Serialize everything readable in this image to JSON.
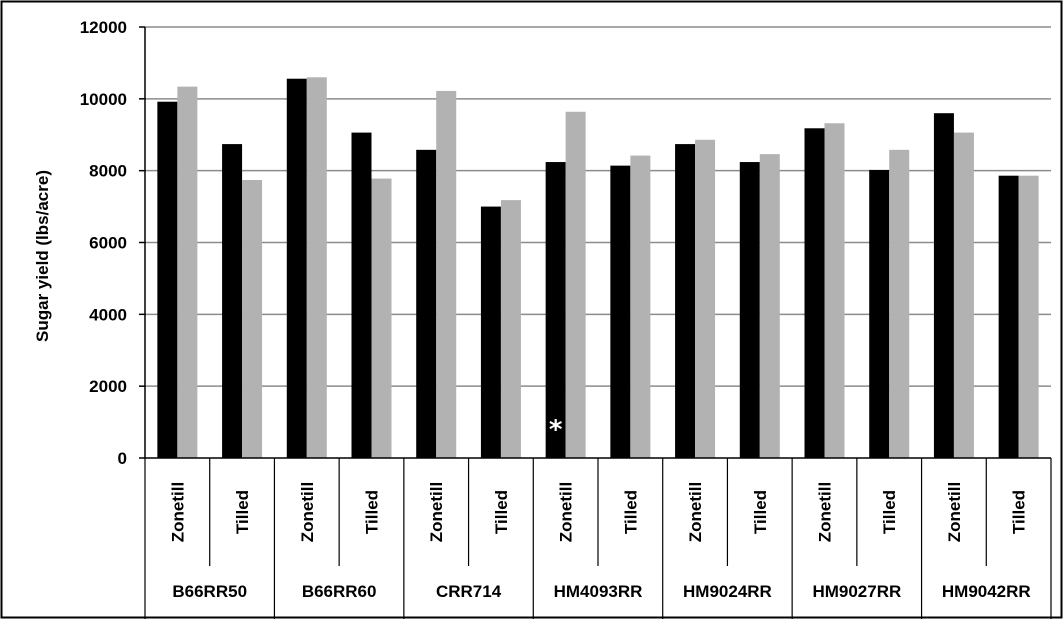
{
  "chart_data": {
    "type": "bar",
    "title": "",
    "xlabel": "",
    "ylabel": "Sugar yield (lbs/acre)",
    "ylim": [
      0,
      12000
    ],
    "yticks": [
      0,
      2000,
      4000,
      6000,
      8000,
      10000,
      12000
    ],
    "grid": true,
    "legend": "none",
    "group_labels": [
      "B66RR50",
      "B66RR60",
      "CRR714",
      "HM4093RR",
      "HM9024RR",
      "HM9027RR",
      "HM9042RR"
    ],
    "categories": [
      "Zonetill",
      "Tilled",
      "Zonetill",
      "Tilled",
      "Zonetill",
      "Tilled",
      "Zonetill",
      "Tilled",
      "Zonetill",
      "Tilled",
      "Zonetill",
      "Tilled",
      "Zonetill",
      "Tilled"
    ],
    "series": [
      {
        "color": "#000000",
        "values": [
          9920,
          8740,
          10560,
          9060,
          8580,
          7000,
          8240,
          8140,
          8740,
          8240,
          9180,
          8020,
          9600,
          7860
        ]
      },
      {
        "color": "#b2b2b2",
        "values": [
          10340,
          7740,
          10600,
          7780,
          10220,
          7180,
          9640,
          8420,
          8860,
          8460,
          9320,
          8580,
          9060,
          7860
        ]
      }
    ],
    "annotations": [
      {
        "text": "*",
        "category_index": 6,
        "series_index": 0,
        "value": 950
      }
    ]
  }
}
